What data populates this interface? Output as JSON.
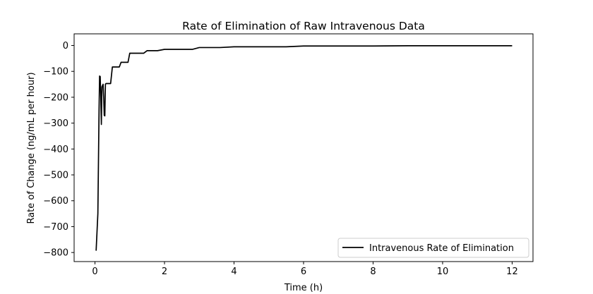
{
  "chart_data": {
    "type": "line",
    "title": "Rate of Elimination of Raw Intravenous Data",
    "xlabel": "Time (h)",
    "ylabel": "Rate of Change (ng/mL per hour)",
    "xlim": [
      -0.6,
      12.6
    ],
    "ylim": [
      -835,
      45
    ],
    "xticks": [
      0,
      2,
      4,
      6,
      8,
      10,
      12
    ],
    "yticks": [
      0,
      -100,
      -200,
      -300,
      -400,
      -500,
      -600,
      -700,
      -800
    ],
    "grid": false,
    "legend_position": "lower right",
    "series": [
      {
        "name": "Intravenous Rate of Elimination",
        "color": "#000000",
        "x": [
          0.033,
          0.083,
          0.117,
          0.133,
          0.15,
          0.167,
          0.183,
          0.2,
          0.233,
          0.25,
          0.267,
          0.283,
          0.3,
          0.317,
          0.333,
          0.35,
          0.4,
          0.45,
          0.5,
          0.55,
          0.6,
          0.65,
          0.7,
          0.75,
          0.8,
          0.9,
          0.95,
          1.0,
          1.1,
          1.2,
          1.3,
          1.4,
          1.5,
          1.6,
          1.8,
          2.0,
          2.2,
          2.5,
          2.8,
          3.0,
          3.3,
          3.6,
          4.0,
          4.5,
          5.0,
          5.5,
          6.0,
          6.5,
          7.0,
          8.0,
          9.0,
          10.0,
          11.0,
          12.0
        ],
        "y": [
          -793,
          -650,
          -250,
          -118,
          -120,
          -200,
          -305,
          -160,
          -150,
          -200,
          -270,
          -272,
          -150,
          -147,
          -147,
          -147,
          -147,
          -147,
          -83,
          -83,
          -83,
          -83,
          -83,
          -65,
          -65,
          -65,
          -65,
          -30,
          -30,
          -30,
          -30,
          -30,
          -20,
          -20,
          -20,
          -15,
          -15,
          -15,
          -15,
          -8,
          -8,
          -8,
          -5,
          -5,
          -5,
          -5,
          -2,
          -2,
          -2,
          -2,
          -1,
          -1,
          -1,
          -1
        ]
      }
    ]
  }
}
